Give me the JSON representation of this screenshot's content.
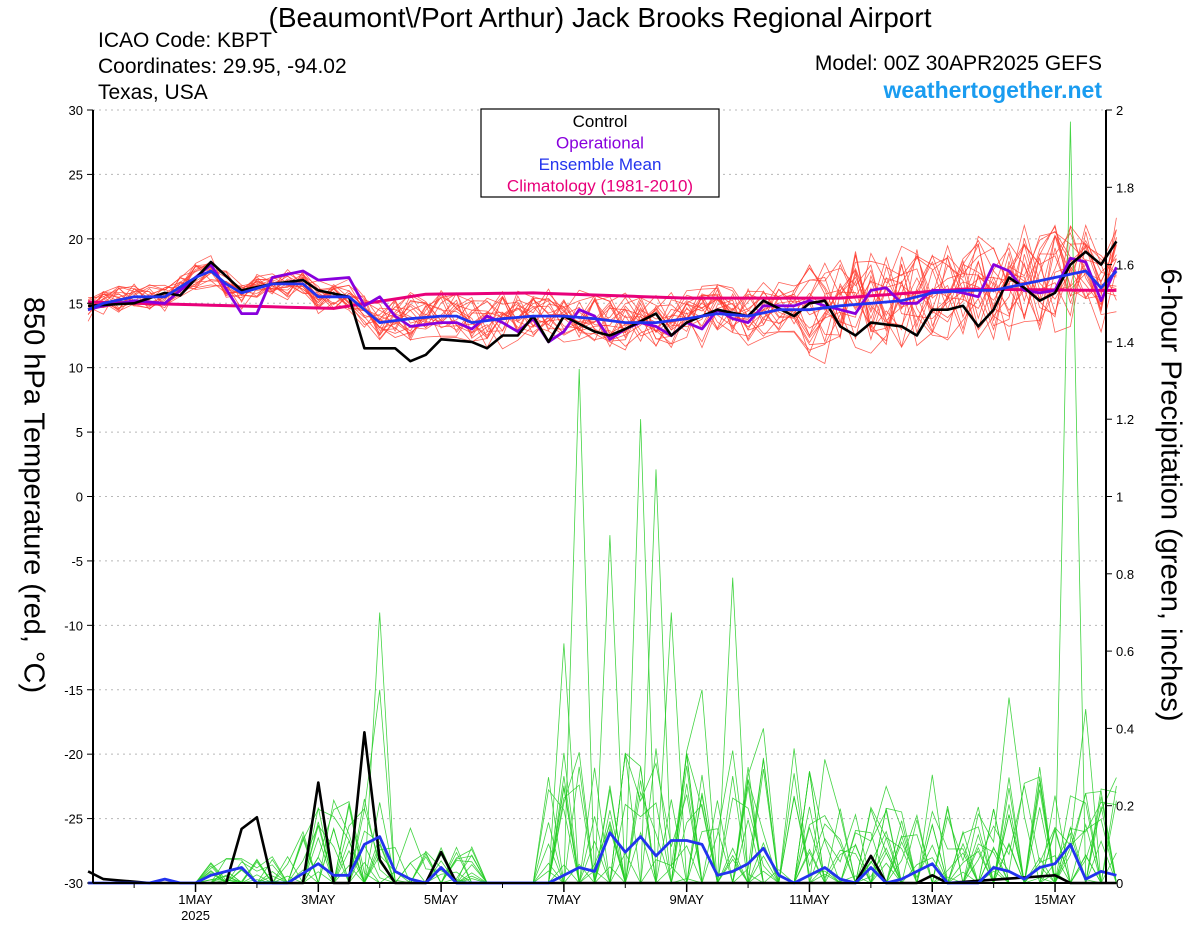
{
  "header": {
    "title": "(Beaumont\\/Port Arthur) Jack Brooks Regional Airport",
    "icao": "ICAO Code: KBPT",
    "coordinates": "Coordinates: 29.95, -94.02",
    "region": "Texas, USA",
    "model": "Model: 00Z 30APR2025 GEFS",
    "site": "weathertogether.net"
  },
  "colors": {
    "control": "#000000",
    "operational": "#8800dd",
    "ensemble_mean": "#2233ee",
    "climatology": "#e8007a",
    "member_temp": "#ff3b2e",
    "member_precip": "#22cc22",
    "site": "#1a9cf0"
  },
  "chart_data": {
    "type": "line",
    "ylabel": "850 hPa Temperature (red, °C)",
    "y2label": "6-hour Precipitation (green, inches)",
    "ylim": [
      -30,
      30
    ],
    "y2lim": [
      0,
      2
    ],
    "yticks": [
      "30",
      "25",
      "20",
      "15",
      "10",
      "5",
      "0",
      "-5",
      "-10",
      "-15",
      "-20",
      "-25",
      "-30"
    ],
    "y2ticks": [
      "2",
      "1.8",
      "1.6",
      "1.4",
      "1.2",
      "1",
      "0.8",
      "0.6",
      "0.4",
      "0.2",
      "0"
    ],
    "xlim": [
      -0.67,
      15.83
    ],
    "xticks": [
      {
        "x": 1,
        "label": "1MAY",
        "sub": "2025"
      },
      {
        "x": 3,
        "label": "3MAY"
      },
      {
        "x": 5,
        "label": "5MAY"
      },
      {
        "x": 7,
        "label": "7MAY"
      },
      {
        "x": 9,
        "label": "9MAY"
      },
      {
        "x": 11,
        "label": "11MAY"
      },
      {
        "x": 13,
        "label": "13MAY"
      },
      {
        "x": 15,
        "label": "15MAY"
      }
    ],
    "grid": true,
    "legend": {
      "position": "top-center",
      "entries": [
        {
          "label": "Control",
          "color": "#000000"
        },
        {
          "label": "Operational",
          "color": "#8800dd"
        },
        {
          "label": "Ensemble Mean",
          "color": "#2233ee"
        },
        {
          "label": "Climatology (1981-2010)",
          "color": "#e8007a"
        }
      ]
    },
    "time_step_days": 0.25,
    "time_start_day": -0.75,
    "climatology": {
      "x": [
        -0.75,
        3.25,
        4.75,
        6.5,
        9.0,
        11.5,
        13.5,
        15.75
      ],
      "y": [
        15.1,
        14.6,
        15.7,
        15.8,
        15.4,
        15.4,
        16.1,
        16.0
      ]
    },
    "control_temp_anchors": [
      [
        -0.75,
        14.8
      ],
      [
        0,
        15.0
      ],
      [
        0.5,
        15.8
      ],
      [
        0.75,
        15.6
      ],
      [
        1.25,
        18.2
      ],
      [
        1.75,
        16.0
      ],
      [
        2.25,
        16.5
      ],
      [
        2.75,
        16.8
      ],
      [
        3.0,
        16.0
      ],
      [
        3.5,
        15.5
      ],
      [
        3.75,
        11.5
      ],
      [
        4.25,
        11.5
      ],
      [
        4.5,
        10.5
      ],
      [
        4.75,
        11.0
      ],
      [
        5.0,
        12.2
      ],
      [
        5.5,
        12.0
      ],
      [
        5.75,
        11.5
      ],
      [
        6.0,
        12.5
      ],
      [
        6.25,
        12.5
      ],
      [
        6.5,
        14.0
      ],
      [
        6.75,
        12.0
      ],
      [
        7.0,
        14.0
      ],
      [
        7.5,
        12.8
      ],
      [
        7.75,
        12.5
      ],
      [
        8.0,
        13.0
      ],
      [
        8.5,
        14.2
      ],
      [
        8.75,
        12.5
      ],
      [
        9.0,
        13.5
      ],
      [
        9.5,
        14.5
      ],
      [
        10.0,
        14.0
      ],
      [
        10.25,
        15.2
      ],
      [
        10.75,
        14.0
      ],
      [
        11.0,
        15.0
      ],
      [
        11.25,
        15.2
      ],
      [
        11.5,
        13.2
      ],
      [
        11.75,
        12.5
      ],
      [
        12.0,
        13.5
      ],
      [
        12.5,
        13.2
      ],
      [
        12.75,
        12.5
      ],
      [
        13.0,
        14.5
      ],
      [
        13.25,
        14.5
      ],
      [
        13.5,
        14.8
      ],
      [
        13.75,
        13.2
      ],
      [
        14.0,
        14.5
      ],
      [
        14.25,
        17.0
      ],
      [
        14.5,
        16.2
      ],
      [
        14.75,
        15.2
      ],
      [
        15.0,
        15.8
      ],
      [
        15.25,
        18.0
      ],
      [
        15.5,
        19.0
      ],
      [
        15.75,
        18.0
      ],
      [
        16.0,
        19.8
      ]
    ],
    "operational_temp_anchors": [
      [
        -0.75,
        14.5
      ],
      [
        -0.5,
        14.8
      ],
      [
        0,
        15.2
      ],
      [
        0.5,
        15.0
      ],
      [
        0.75,
        16.0
      ],
      [
        1.25,
        18.0
      ],
      [
        1.75,
        14.2
      ],
      [
        2.0,
        14.2
      ],
      [
        2.25,
        17.0
      ],
      [
        2.75,
        17.5
      ],
      [
        3.0,
        16.8
      ],
      [
        3.5,
        17.0
      ],
      [
        3.75,
        14.8
      ],
      [
        4.0,
        15.5
      ],
      [
        4.25,
        14.0
      ],
      [
        4.5,
        13.2
      ],
      [
        5.0,
        13.5
      ],
      [
        5.25,
        13.5
      ],
      [
        5.5,
        13.0
      ],
      [
        5.75,
        14.0
      ],
      [
        6.0,
        13.5
      ],
      [
        6.25,
        12.8
      ],
      [
        6.5,
        13.8
      ],
      [
        6.75,
        12.0
      ],
      [
        7.0,
        12.8
      ],
      [
        7.25,
        14.5
      ],
      [
        7.5,
        14.0
      ],
      [
        7.75,
        12.2
      ],
      [
        8.0,
        13.0
      ],
      [
        8.25,
        13.5
      ],
      [
        8.5,
        13.2
      ],
      [
        8.75,
        12.5
      ],
      [
        9.0,
        13.5
      ],
      [
        9.25,
        13.0
      ],
      [
        9.5,
        14.5
      ],
      [
        9.75,
        13.8
      ],
      [
        10.0,
        13.5
      ],
      [
        10.25,
        14.8
      ],
      [
        10.75,
        14.8
      ],
      [
        11.0,
        15.2
      ],
      [
        11.25,
        14.8
      ],
      [
        11.5,
        14.5
      ],
      [
        11.75,
        14.2
      ],
      [
        12.0,
        16.0
      ],
      [
        12.25,
        16.2
      ],
      [
        12.5,
        15.0
      ],
      [
        12.75,
        15.0
      ],
      [
        13.0,
        16.0
      ],
      [
        13.25,
        16.0
      ],
      [
        13.5,
        15.8
      ],
      [
        13.75,
        15.5
      ],
      [
        14.0,
        18.0
      ],
      [
        14.25,
        17.5
      ],
      [
        14.5,
        16.0
      ],
      [
        14.75,
        15.8
      ],
      [
        15.0,
        16.0
      ],
      [
        15.25,
        18.5
      ],
      [
        15.5,
        18.2
      ],
      [
        15.75,
        15.2
      ],
      [
        16.0,
        17.8
      ]
    ],
    "ensemble_mean_temp_anchors": [
      [
        -0.75,
        14.5
      ],
      [
        -0.5,
        15.0
      ],
      [
        0,
        15.5
      ],
      [
        0.5,
        15.5
      ],
      [
        1.0,
        17.0
      ],
      [
        1.25,
        17.5
      ],
      [
        1.5,
        16.5
      ],
      [
        1.75,
        15.8
      ],
      [
        2.25,
        16.5
      ],
      [
        2.75,
        16.5
      ],
      [
        3.0,
        15.5
      ],
      [
        3.5,
        15.5
      ],
      [
        3.75,
        14.5
      ],
      [
        4.0,
        13.5
      ],
      [
        4.5,
        13.8
      ],
      [
        5.0,
        14.0
      ],
      [
        5.25,
        14.0
      ],
      [
        5.5,
        13.5
      ],
      [
        6.0,
        13.8
      ],
      [
        6.5,
        14.0
      ],
      [
        7.0,
        14.0
      ],
      [
        7.5,
        13.8
      ],
      [
        8.0,
        13.5
      ],
      [
        8.5,
        13.5
      ],
      [
        9.0,
        13.8
      ],
      [
        9.5,
        14.2
      ],
      [
        10.0,
        14.0
      ],
      [
        10.5,
        14.5
      ],
      [
        11.0,
        14.5
      ],
      [
        11.5,
        14.8
      ],
      [
        12.0,
        15.0
      ],
      [
        12.5,
        15.2
      ],
      [
        13.0,
        15.8
      ],
      [
        13.5,
        16.0
      ],
      [
        14.0,
        16.0
      ],
      [
        14.5,
        16.5
      ],
      [
        15.0,
        17.0
      ],
      [
        15.5,
        17.5
      ],
      [
        15.75,
        16.2
      ],
      [
        16.0,
        17.5
      ]
    ],
    "control_precip_anchors": [
      [
        -0.75,
        0.03
      ],
      [
        -0.5,
        0.01
      ],
      [
        0.25,
        0.0
      ],
      [
        0.75,
        0.0
      ],
      [
        1.0,
        0.0
      ],
      [
        1.5,
        0.0
      ],
      [
        1.75,
        0.14
      ],
      [
        2.0,
        0.17
      ],
      [
        2.25,
        0.0
      ],
      [
        2.75,
        0.0
      ],
      [
        3.0,
        0.26
      ],
      [
        3.25,
        0.0
      ],
      [
        3.5,
        0.0
      ],
      [
        3.75,
        0.39
      ],
      [
        4.0,
        0.06
      ],
      [
        4.25,
        0.0
      ],
      [
        4.75,
        0.0
      ],
      [
        5.0,
        0.08
      ],
      [
        5.25,
        0.0
      ],
      [
        11.75,
        0.0
      ],
      [
        12.0,
        0.07
      ],
      [
        12.25,
        0.0
      ],
      [
        12.75,
        0.0
      ],
      [
        13.0,
        0.02
      ],
      [
        13.25,
        0.0
      ],
      [
        15.0,
        0.02
      ],
      [
        15.25,
        0.0
      ],
      [
        16.0,
        0.0
      ]
    ],
    "ensemble_mean_precip_anchors": [
      [
        -0.75,
        0.0
      ],
      [
        0.25,
        0.0
      ],
      [
        0.5,
        0.01
      ],
      [
        0.75,
        0.0
      ],
      [
        1.0,
        0.0
      ],
      [
        1.25,
        0.02
      ],
      [
        1.5,
        0.03
      ],
      [
        1.75,
        0.04
      ],
      [
        2.0,
        0.0
      ],
      [
        2.5,
        0.0
      ],
      [
        3.0,
        0.05
      ],
      [
        3.25,
        0.02
      ],
      [
        3.5,
        0.02
      ],
      [
        3.75,
        0.1
      ],
      [
        4.0,
        0.12
      ],
      [
        4.25,
        0.03
      ],
      [
        4.5,
        0.01
      ],
      [
        4.75,
        0.0
      ],
      [
        5.0,
        0.04
      ],
      [
        5.25,
        0.0
      ],
      [
        6.75,
        0.0
      ],
      [
        7.0,
        0.02
      ],
      [
        7.25,
        0.04
      ],
      [
        7.5,
        0.03
      ],
      [
        7.75,
        0.13
      ],
      [
        8.0,
        0.08
      ],
      [
        8.25,
        0.12
      ],
      [
        8.5,
        0.07
      ],
      [
        8.75,
        0.11
      ],
      [
        9.0,
        0.11
      ],
      [
        9.25,
        0.1
      ],
      [
        9.5,
        0.02
      ],
      [
        9.75,
        0.03
      ],
      [
        10.0,
        0.05
      ],
      [
        10.25,
        0.09
      ],
      [
        10.5,
        0.02
      ],
      [
        10.75,
        0.0
      ],
      [
        11.0,
        0.02
      ],
      [
        11.25,
        0.04
      ],
      [
        11.5,
        0.01
      ],
      [
        11.75,
        0.0
      ],
      [
        12.0,
        0.04
      ],
      [
        12.25,
        0.0
      ],
      [
        12.5,
        0.01
      ],
      [
        12.75,
        0.03
      ],
      [
        13.0,
        0.05
      ],
      [
        13.25,
        0.0
      ],
      [
        13.75,
        0.0
      ],
      [
        14.0,
        0.04
      ],
      [
        14.25,
        0.03
      ],
      [
        14.5,
        0.01
      ],
      [
        14.75,
        0.04
      ],
      [
        15.0,
        0.05
      ],
      [
        15.25,
        0.1
      ],
      [
        15.5,
        0.01
      ],
      [
        15.75,
        0.03
      ],
      [
        16.0,
        0.02
      ]
    ],
    "member_precip_peaks": [
      [
        4.0,
        0.7
      ],
      [
        4.0,
        0.5
      ],
      [
        7.0,
        0.62
      ],
      [
        7.25,
        1.33
      ],
      [
        7.75,
        0.9
      ],
      [
        8.25,
        1.2
      ],
      [
        8.5,
        1.07
      ],
      [
        8.75,
        0.7
      ],
      [
        9.25,
        0.5
      ],
      [
        9.75,
        0.79
      ],
      [
        10.25,
        0.4
      ],
      [
        11.25,
        0.32
      ],
      [
        12.25,
        0.25
      ],
      [
        13.0,
        0.28
      ],
      [
        14.25,
        0.48
      ],
      [
        14.75,
        0.3
      ],
      [
        15.25,
        1.97
      ],
      [
        15.5,
        0.45
      ]
    ]
  }
}
